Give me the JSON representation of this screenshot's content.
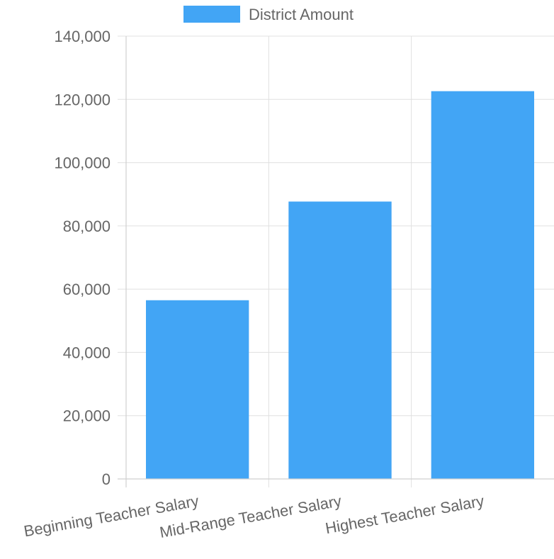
{
  "chart_data": {
    "type": "bar",
    "categories": [
      "Beginning Teacher Salary",
      "Mid-Range Teacher Salary",
      "Highest Teacher Salary"
    ],
    "series": [
      {
        "name": "District Amount",
        "color": "#42a5f5",
        "values": [
          56500,
          87700,
          122600
        ]
      }
    ],
    "ylim": [
      0,
      140000
    ],
    "yticks": [
      0,
      20000,
      40000,
      60000,
      80000,
      100000,
      120000,
      140000
    ],
    "ytick_labels": [
      "0",
      "20,000",
      "40,000",
      "60,000",
      "80,000",
      "100,000",
      "120,000",
      "140,000"
    ],
    "grid": true,
    "legend": "top-center",
    "xlabel": "",
    "ylabel": "",
    "title": ""
  }
}
